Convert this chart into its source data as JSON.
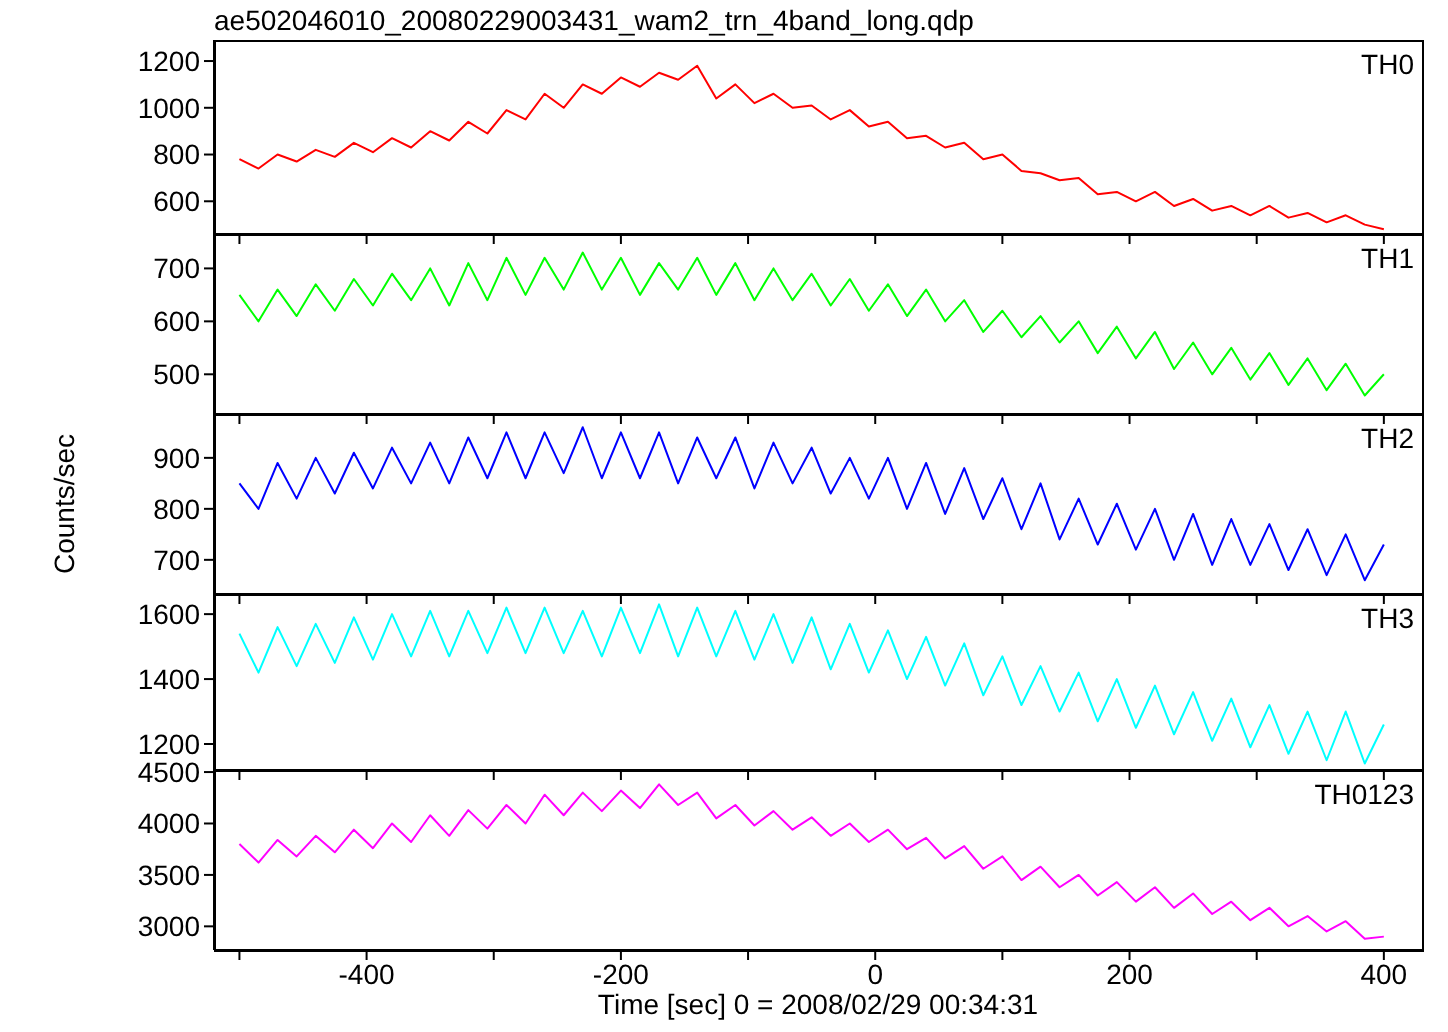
{
  "chart_data": [
    {
      "type": "line",
      "title": "ae502046010_20080229003431_wam2_trn_4band_long.qdp",
      "x": [
        -500,
        -485,
        -470,
        -455,
        -440,
        -425,
        -410,
        -395,
        -380,
        -365,
        -350,
        -335,
        -320,
        -305,
        -290,
        -275,
        -260,
        -245,
        -230,
        -215,
        -200,
        -185,
        -170,
        -155,
        -140,
        -125,
        -110,
        -95,
        -80,
        -65,
        -50,
        -35,
        -20,
        -5,
        10,
        25,
        40,
        55,
        70,
        85,
        100,
        115,
        130,
        145,
        160,
        175,
        190,
        205,
        220,
        235,
        250,
        265,
        280,
        295,
        310,
        325,
        340,
        355,
        370,
        385,
        400
      ],
      "xlim": [
        -520,
        430
      ],
      "xticks": [
        {
          "value": -500,
          "label": null
        },
        -400,
        {
          "value": -300,
          "label": null
        },
        -200,
        {
          "value": -100,
          "label": null
        },
        0,
        {
          "value": 100,
          "label": null
        },
        200,
        {
          "value": 300,
          "label": null
        },
        400
      ],
      "ylim": [
        460,
        1290
      ],
      "yticks": [
        600,
        800,
        1000,
        1200
      ],
      "tick_labels": "y",
      "series": [
        {
          "name": "TH0",
          "color": "#ff0000",
          "values": [
            780,
            740,
            800,
            770,
            820,
            790,
            850,
            810,
            870,
            830,
            900,
            860,
            940,
            890,
            990,
            950,
            1060,
            1000,
            1100,
            1060,
            1130,
            1090,
            1150,
            1120,
            1180,
            1040,
            1100,
            1020,
            1060,
            1000,
            1010,
            950,
            990,
            920,
            940,
            870,
            880,
            830,
            850,
            780,
            800,
            730,
            720,
            690,
            700,
            630,
            640,
            600,
            640,
            580,
            610,
            560,
            580,
            540,
            580,
            530,
            550,
            510,
            540,
            500,
            480
          ]
        }
      ]
    },
    {
      "type": "line",
      "x": [
        -500,
        -485,
        -470,
        -455,
        -440,
        -425,
        -410,
        -395,
        -380,
        -365,
        -350,
        -335,
        -320,
        -305,
        -290,
        -275,
        -260,
        -245,
        -230,
        -215,
        -200,
        -185,
        -170,
        -155,
        -140,
        -125,
        -110,
        -95,
        -80,
        -65,
        -50,
        -35,
        -20,
        -5,
        10,
        25,
        40,
        55,
        70,
        85,
        100,
        115,
        130,
        145,
        160,
        175,
        190,
        205,
        220,
        235,
        250,
        265,
        280,
        295,
        310,
        325,
        340,
        355,
        370,
        385,
        400
      ],
      "xlim": [
        -520,
        430
      ],
      "xticks": [
        {
          "value": -500,
          "label": null
        },
        -400,
        {
          "value": -300,
          "label": null
        },
        -200,
        {
          "value": -100,
          "label": null
        },
        0,
        {
          "value": 100,
          "label": null
        },
        200,
        {
          "value": 300,
          "label": null
        },
        400
      ],
      "ylim": [
        425,
        765
      ],
      "yticks": [
        500,
        600,
        700
      ],
      "tick_labels": "y",
      "series": [
        {
          "name": "TH1",
          "color": "#00ff00",
          "values": [
            650,
            600,
            660,
            610,
            670,
            620,
            680,
            630,
            690,
            640,
            700,
            630,
            710,
            640,
            720,
            650,
            720,
            660,
            730,
            660,
            720,
            650,
            710,
            660,
            720,
            650,
            710,
            640,
            700,
            640,
            690,
            630,
            680,
            620,
            670,
            610,
            660,
            600,
            640,
            580,
            620,
            570,
            610,
            560,
            600,
            540,
            590,
            530,
            580,
            510,
            560,
            500,
            550,
            490,
            540,
            480,
            530,
            470,
            520,
            460,
            500
          ]
        }
      ]
    },
    {
      "type": "line",
      "ylabel": "Counts/sec",
      "x": [
        -500,
        -485,
        -470,
        -455,
        -440,
        -425,
        -410,
        -395,
        -380,
        -365,
        -350,
        -335,
        -320,
        -305,
        -290,
        -275,
        -260,
        -245,
        -230,
        -215,
        -200,
        -185,
        -170,
        -155,
        -140,
        -125,
        -110,
        -95,
        -80,
        -65,
        -50,
        -35,
        -20,
        -5,
        10,
        25,
        40,
        55,
        70,
        85,
        100,
        115,
        130,
        145,
        160,
        175,
        190,
        205,
        220,
        235,
        250,
        265,
        280,
        295,
        310,
        325,
        340,
        355,
        370,
        385,
        400
      ],
      "xlim": [
        -520,
        430
      ],
      "xticks": [
        {
          "value": -500,
          "label": null
        },
        -400,
        {
          "value": -300,
          "label": null
        },
        -200,
        {
          "value": -100,
          "label": null
        },
        0,
        {
          "value": 100,
          "label": null
        },
        200,
        {
          "value": 300,
          "label": null
        },
        400
      ],
      "ylim": [
        633,
        986
      ],
      "yticks": [
        700,
        800,
        900
      ],
      "tick_labels": "y",
      "series": [
        {
          "name": "TH2",
          "color": "#0000ff",
          "values": [
            850,
            800,
            890,
            820,
            900,
            830,
            910,
            840,
            920,
            850,
            930,
            850,
            940,
            860,
            950,
            860,
            950,
            870,
            960,
            860,
            950,
            860,
            950,
            850,
            940,
            860,
            940,
            840,
            930,
            850,
            920,
            830,
            900,
            820,
            900,
            800,
            890,
            790,
            880,
            780,
            860,
            760,
            850,
            740,
            820,
            730,
            810,
            720,
            800,
            700,
            790,
            690,
            780,
            690,
            770,
            680,
            760,
            670,
            750,
            660,
            730
          ]
        }
      ]
    },
    {
      "type": "line",
      "x": [
        -500,
        -485,
        -470,
        -455,
        -440,
        -425,
        -410,
        -395,
        -380,
        -365,
        -350,
        -335,
        -320,
        -305,
        -290,
        -275,
        -260,
        -245,
        -230,
        -215,
        -200,
        -185,
        -170,
        -155,
        -140,
        -125,
        -110,
        -95,
        -80,
        -65,
        -50,
        -35,
        -20,
        -5,
        10,
        25,
        40,
        55,
        70,
        85,
        100,
        115,
        130,
        145,
        160,
        175,
        190,
        205,
        220,
        235,
        250,
        265,
        280,
        295,
        310,
        325,
        340,
        355,
        370,
        385,
        400
      ],
      "xlim": [
        -520,
        430
      ],
      "xticks": [
        {
          "value": -500,
          "label": null
        },
        -400,
        {
          "value": -300,
          "label": null
        },
        -200,
        {
          "value": -100,
          "label": null
        },
        0,
        {
          "value": 100,
          "label": null
        },
        200,
        {
          "value": 300,
          "label": null
        },
        400
      ],
      "ylim": [
        1120,
        1662
      ],
      "yticks": [
        1200,
        1400,
        1600
      ],
      "tick_labels": "y",
      "series": [
        {
          "name": "TH3",
          "color": "#00ffff",
          "values": [
            1540,
            1420,
            1560,
            1440,
            1570,
            1450,
            1590,
            1460,
            1600,
            1470,
            1610,
            1470,
            1610,
            1480,
            1620,
            1480,
            1620,
            1480,
            1610,
            1470,
            1620,
            1480,
            1630,
            1470,
            1620,
            1470,
            1610,
            1460,
            1600,
            1450,
            1590,
            1430,
            1570,
            1420,
            1550,
            1400,
            1530,
            1380,
            1510,
            1350,
            1470,
            1320,
            1440,
            1300,
            1420,
            1270,
            1400,
            1250,
            1380,
            1230,
            1360,
            1210,
            1340,
            1190,
            1320,
            1170,
            1300,
            1150,
            1300,
            1140,
            1260
          ]
        }
      ]
    },
    {
      "type": "line",
      "xlabel": "Time [sec] 0 = 2008/02/29 00:34:31",
      "x": [
        -500,
        -485,
        -470,
        -455,
        -440,
        -425,
        -410,
        -395,
        -380,
        -365,
        -350,
        -335,
        -320,
        -305,
        -290,
        -275,
        -260,
        -245,
        -230,
        -215,
        -200,
        -185,
        -170,
        -155,
        -140,
        -125,
        -110,
        -95,
        -80,
        -65,
        -50,
        -35,
        -20,
        -5,
        10,
        25,
        40,
        55,
        70,
        85,
        100,
        115,
        130,
        145,
        160,
        175,
        190,
        205,
        220,
        235,
        250,
        265,
        280,
        295,
        310,
        325,
        340,
        355,
        370,
        385,
        400
      ],
      "xlim": [
        -520,
        430
      ],
      "xticks": [
        {
          "value": -500,
          "label": null
        },
        -400,
        {
          "value": -300,
          "label": null
        },
        -200,
        {
          "value": -100,
          "label": null
        },
        0,
        {
          "value": 100,
          "label": null
        },
        200,
        {
          "value": 300,
          "label": null
        },
        400
      ],
      "ylim": [
        2770,
        4520
      ],
      "yticks": [
        3000,
        3500,
        4000,
        4500
      ],
      "series": [
        {
          "name": "TH0123",
          "color": "#ff00ff",
          "values": [
            3800,
            3620,
            3840,
            3680,
            3880,
            3720,
            3940,
            3760,
            4000,
            3820,
            4080,
            3880,
            4130,
            3950,
            4180,
            4000,
            4280,
            4080,
            4300,
            4120,
            4320,
            4150,
            4380,
            4180,
            4300,
            4050,
            4180,
            3980,
            4120,
            3940,
            4060,
            3880,
            4000,
            3820,
            3940,
            3750,
            3860,
            3660,
            3780,
            3560,
            3680,
            3450,
            3580,
            3380,
            3500,
            3300,
            3430,
            3240,
            3380,
            3180,
            3320,
            3120,
            3240,
            3060,
            3180,
            3000,
            3100,
            2950,
            3050,
            2880,
            2900
          ]
        }
      ]
    }
  ]
}
